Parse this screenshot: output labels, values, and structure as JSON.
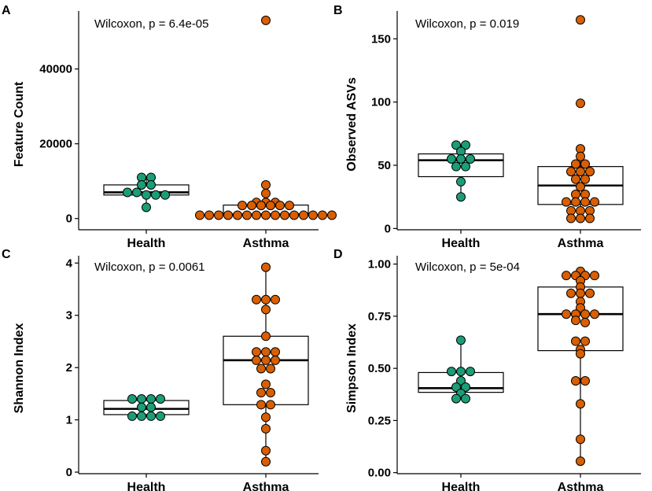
{
  "colors": {
    "health": "#1b9e77",
    "asthma": "#d95f02",
    "outline": "#000000",
    "box_fill": "#ffffff"
  },
  "chart_data": [
    {
      "panel": "A",
      "type": "box-dotplot",
      "ylabel": "Feature Count",
      "stat_label": "Wilcoxon, p = 6.4e-05",
      "categories": [
        "Health",
        "Asthma"
      ],
      "ylim": [
        -3000,
        55500
      ],
      "yticks": [
        0,
        20000,
        40000
      ],
      "ytick_labels": [
        "0",
        "20000",
        "40000"
      ],
      "series": [
        {
          "name": "Health",
          "box": {
            "q1": 6300,
            "median": 7000,
            "q3": 9000
          },
          "whisker": [
            3000,
            11000
          ],
          "points": [
            11000,
            11000,
            9000,
            9000,
            7000,
            7000,
            6300,
            6300,
            6300,
            3000
          ]
        },
        {
          "name": "Asthma",
          "box": {
            "q1": 900,
            "median": 1100,
            "q3": 3600
          },
          "whisker": [
            900,
            9000
          ],
          "points": [
            53000,
            9000,
            6700,
            4300,
            4300,
            4300,
            3500,
            3500,
            3500,
            3500,
            3500,
            3500,
            900,
            900,
            900,
            900,
            900,
            900,
            900,
            900,
            900,
            900,
            900,
            900,
            900,
            900,
            900
          ]
        }
      ]
    },
    {
      "panel": "B",
      "type": "box-dotplot",
      "ylabel": "Observed ASVs",
      "stat_label": "Wilcoxon, p = 0.019",
      "categories": [
        "Health",
        "Asthma"
      ],
      "ylim": [
        -1,
        172
      ],
      "yticks": [
        0,
        50,
        100,
        150
      ],
      "ytick_labels": [
        "0",
        "50",
        "100",
        "150"
      ],
      "series": [
        {
          "name": "Health",
          "box": {
            "q1": 41,
            "median": 54,
            "q3": 59
          },
          "whisker": [
            25,
            66
          ],
          "points": [
            66,
            66,
            61,
            55,
            55,
            55,
            49,
            49,
            37,
            25
          ]
        },
        {
          "name": "Asthma",
          "box": {
            "q1": 19,
            "median": 34,
            "q3": 49
          },
          "whisker": [
            8,
            63
          ],
          "points": [
            165,
            99,
            63,
            57,
            51,
            51,
            45,
            45,
            45,
            39,
            39,
            33,
            27,
            27,
            21,
            21,
            21,
            21,
            14,
            14,
            14,
            8,
            8,
            8
          ]
        }
      ]
    },
    {
      "panel": "C",
      "type": "box-dotplot",
      "ylabel": "Shannon Index",
      "stat_label": "Wilcoxon, p = 0.0061",
      "categories": [
        "Health",
        "Asthma"
      ],
      "ylim": [
        -0.03,
        4.14
      ],
      "yticks": [
        0,
        1,
        2,
        3,
        4
      ],
      "ytick_labels": [
        "0",
        "1",
        "2",
        "3",
        "4"
      ],
      "series": [
        {
          "name": "Health",
          "box": {
            "q1": 1.1,
            "median": 1.21,
            "q3": 1.37
          },
          "whisker": [
            1.07,
            1.4
          ],
          "points": [
            1.4,
            1.4,
            1.4,
            1.4,
            1.24,
            1.24,
            1.07,
            1.07,
            1.07,
            1.07
          ]
        },
        {
          "name": "Asthma",
          "box": {
            "q1": 1.29,
            "median": 2.14,
            "q3": 2.6
          },
          "whisker": [
            0.2,
            3.92
          ],
          "points": [
            3.92,
            3.3,
            3.3,
            3.3,
            3.11,
            2.6,
            2.3,
            2.3,
            2.3,
            2.14,
            2.14,
            2.14,
            1.98,
            1.98,
            1.68,
            1.52,
            1.52,
            1.29,
            1.29,
            1.05,
            0.83,
            0.41,
            0.2
          ]
        }
      ]
    },
    {
      "panel": "D",
      "type": "box-dotplot",
      "ylabel": "Simpson Index",
      "stat_label": "Wilcoxon, p = 5e-04",
      "categories": [
        "Health",
        "Asthma"
      ],
      "ylim": [
        -0.005,
        1.04
      ],
      "yticks": [
        0,
        0.25,
        0.5,
        0.75,
        1
      ],
      "ytick_labels": [
        "0.00",
        "0.25",
        "0.50",
        "0.75",
        "1.00"
      ],
      "series": [
        {
          "name": "Health",
          "box": {
            "q1": 0.385,
            "median": 0.405,
            "q3": 0.48
          },
          "whisker": [
            0.355,
            0.635
          ],
          "points": [
            0.635,
            0.485,
            0.485,
            0.485,
            0.44,
            0.41,
            0.41,
            0.38,
            0.355,
            0.355
          ]
        },
        {
          "name": "Asthma",
          "box": {
            "q1": 0.585,
            "median": 0.76,
            "q3": 0.89
          },
          "whisker": [
            0.055,
            0.965
          ],
          "points": [
            0.965,
            0.945,
            0.945,
            0.945,
            0.945,
            0.92,
            0.89,
            0.86,
            0.86,
            0.86,
            0.82,
            0.79,
            0.76,
            0.76,
            0.76,
            0.76,
            0.73,
            0.72,
            0.63,
            0.63,
            0.59,
            0.57,
            0.44,
            0.44,
            0.33,
            0.16,
            0.055
          ]
        }
      ]
    }
  ]
}
